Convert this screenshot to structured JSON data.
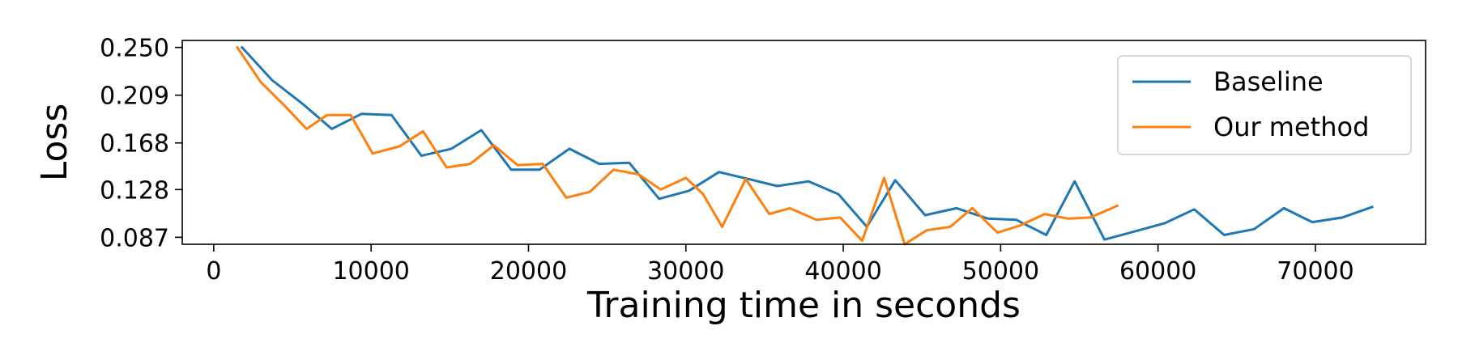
{
  "chart_data": {
    "type": "line",
    "xlabel": "Training time in seconds",
    "ylabel": "Loss",
    "xlim": [
      -2000,
      77000
    ],
    "ylim": [
      0.081,
      0.256
    ],
    "x_ticks": [
      0,
      10000,
      20000,
      30000,
      40000,
      50000,
      60000,
      70000
    ],
    "x_tick_labels": [
      "0",
      "10000",
      "20000",
      "30000",
      "40000",
      "50000",
      "60000",
      "70000"
    ],
    "y_ticks": [
      0.087,
      0.128,
      0.168,
      0.209,
      0.25
    ],
    "y_tick_labels": [
      "0.087",
      "0.128",
      "0.168",
      "0.209",
      "0.250"
    ],
    "grid": false,
    "legend_position": "top-right",
    "series": [
      {
        "name": "Baseline",
        "color": "#1f77b4",
        "x": [
          1800,
          3700,
          5700,
          7500,
          9400,
          11300,
          13200,
          15100,
          17000,
          18900,
          20700,
          22600,
          24500,
          26400,
          28300,
          30200,
          32100,
          34000,
          35800,
          37800,
          39700,
          41500,
          43300,
          45200,
          47200,
          49200,
          51000,
          52900,
          54700,
          56600,
          58500,
          60400,
          62300,
          64200,
          66100,
          68000,
          69800,
          71700,
          73600
        ],
        "y": [
          0.25,
          0.222,
          0.201,
          0.18,
          0.193,
          0.192,
          0.157,
          0.163,
          0.179,
          0.145,
          0.145,
          0.163,
          0.15,
          0.151,
          0.12,
          0.127,
          0.143,
          0.137,
          0.131,
          0.135,
          0.124,
          0.096,
          0.136,
          0.106,
          0.112,
          0.103,
          0.102,
          0.089,
          0.135,
          0.085,
          0.092,
          0.099,
          0.111,
          0.089,
          0.094,
          0.112,
          0.1,
          0.104,
          0.113
        ]
      },
      {
        "name": "Our method",
        "color": "#ff7f0e",
        "x": [
          1500,
          3000,
          4500,
          5900,
          7200,
          8700,
          10100,
          11800,
          13300,
          14800,
          16300,
          17800,
          19300,
          20900,
          22400,
          23900,
          25400,
          27000,
          28400,
          30000,
          31100,
          32300,
          33800,
          35300,
          36600,
          38300,
          39800,
          41200,
          42600,
          43900,
          45300,
          46800,
          48200,
          49800,
          51200,
          52800,
          54300,
          55700,
          57400
        ],
        "y": [
          0.25,
          0.22,
          0.2,
          0.18,
          0.192,
          0.192,
          0.159,
          0.165,
          0.178,
          0.147,
          0.15,
          0.166,
          0.149,
          0.15,
          0.121,
          0.126,
          0.145,
          0.141,
          0.128,
          0.138,
          0.124,
          0.096,
          0.137,
          0.107,
          0.112,
          0.102,
          0.104,
          0.084,
          0.138,
          0.081,
          0.093,
          0.096,
          0.112,
          0.091,
          0.097,
          0.107,
          0.103,
          0.104,
          0.114
        ]
      }
    ]
  }
}
